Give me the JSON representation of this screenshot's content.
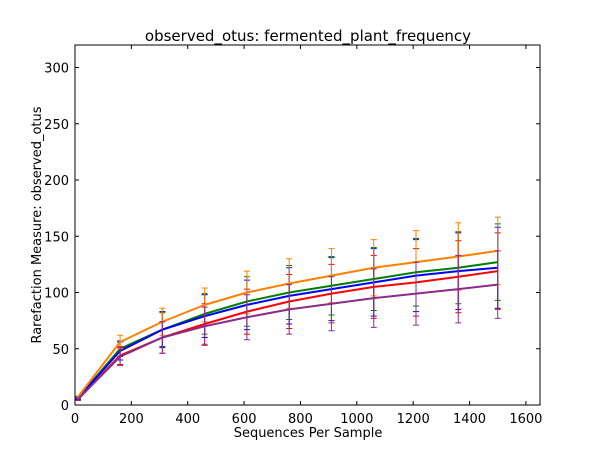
{
  "chart_data": {
    "type": "line",
    "title": "observed_otus: fermented_plant_frequency",
    "xlabel": "Sequences Per Sample",
    "ylabel": "Rarefaction Measure: observed_otus",
    "xlim": [
      0,
      1650
    ],
    "ylim": [
      0,
      320
    ],
    "xticks": [
      0,
      200,
      400,
      600,
      800,
      1000,
      1200,
      1400,
      1600
    ],
    "yticks": [
      0,
      50,
      100,
      150,
      200,
      250,
      300
    ],
    "grid": false,
    "legend": "none",
    "x": [
      10,
      160,
      310,
      460,
      610,
      760,
      910,
      1060,
      1210,
      1360,
      1500
    ],
    "series": [
      {
        "color": "#008000",
        "values": [
          6,
          50,
          67,
          81,
          92,
          100,
          106,
          112,
          118,
          122,
          127
        ],
        "err": [
          1,
          7,
          15,
          18,
          22,
          24,
          26,
          28,
          30,
          32,
          34
        ]
      },
      {
        "color": "#ff0000",
        "values": [
          5,
          44,
          60,
          72,
          83,
          92,
          99,
          105,
          109,
          114,
          119
        ],
        "err": [
          1,
          8,
          14,
          18,
          20,
          24,
          26,
          28,
          30,
          32,
          34
        ]
      },
      {
        "color": "#0000ff",
        "values": [
          6,
          48,
          67,
          79,
          89,
          97,
          103,
          109,
          115,
          119,
          122
        ],
        "err": [
          1,
          8,
          16,
          19,
          22,
          25,
          28,
          30,
          32,
          34,
          36
        ]
      },
      {
        "color": "#ff7f00",
        "values": [
          7,
          56,
          74,
          89,
          100,
          108,
          115,
          122,
          127,
          132,
          137
        ],
        "err": [
          1,
          6,
          12,
          15,
          19,
          22,
          24,
          25,
          28,
          30,
          30
        ]
      },
      {
        "color": "#8b2c8b",
        "values": [
          5,
          43,
          60,
          70,
          78,
          85,
          90,
          95,
          99,
          103,
          107
        ],
        "err": [
          1,
          8,
          14,
          17,
          20,
          22,
          24,
          26,
          28,
          30,
          30
        ]
      }
    ]
  }
}
